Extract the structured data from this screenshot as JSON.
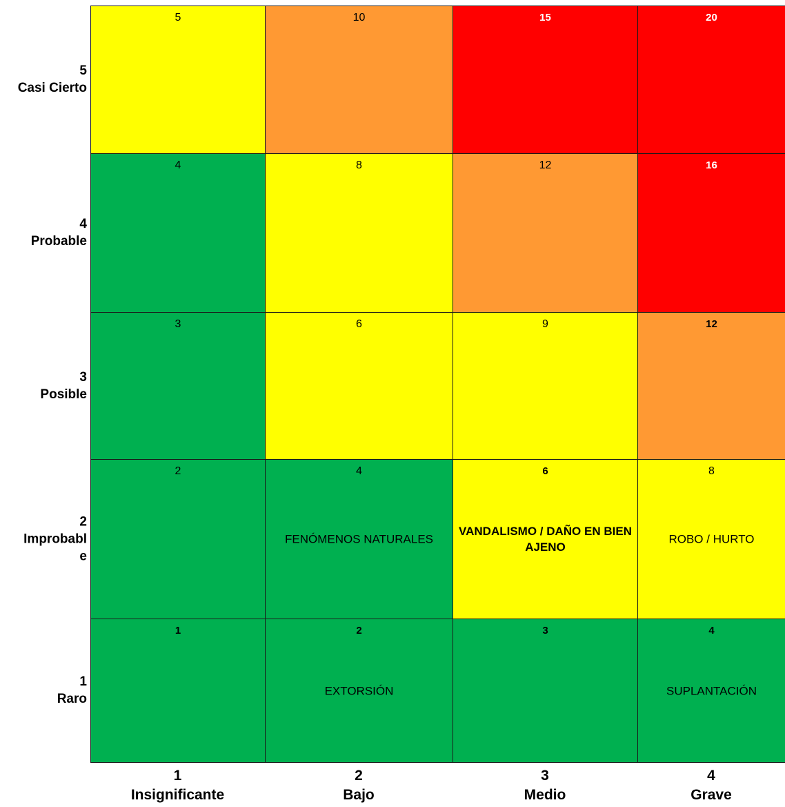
{
  "colors": {
    "green": "#00b050",
    "yellow": "#ffff00",
    "orange": "#ff9933",
    "red": "#ff0000"
  },
  "rows": [
    {
      "num": "5",
      "name": "Casi Cierto"
    },
    {
      "num": "4",
      "name": "Probable"
    },
    {
      "num": "3",
      "name": "Posible"
    },
    {
      "num": "2",
      "name": "Improbabl e"
    },
    {
      "num": "1",
      "name": "Raro"
    }
  ],
  "columns": [
    {
      "num": "1",
      "name": "Insignificante"
    },
    {
      "num": "2",
      "name": "Bajo"
    },
    {
      "num": "3",
      "name": "Medio"
    },
    {
      "num": "4",
      "name": "Grave"
    }
  ],
  "cells": [
    [
      {
        "score": "5",
        "level": "yellow",
        "risk": ""
      },
      {
        "score": "10",
        "level": "orange",
        "risk": ""
      },
      {
        "score": "15",
        "level": "red",
        "risk": ""
      },
      {
        "score": "20",
        "level": "red",
        "risk": ""
      }
    ],
    [
      {
        "score": "4",
        "level": "green",
        "risk": ""
      },
      {
        "score": "8",
        "level": "yellow",
        "risk": ""
      },
      {
        "score": "12",
        "level": "orange",
        "risk": ""
      },
      {
        "score": "16",
        "level": "red",
        "risk": ""
      }
    ],
    [
      {
        "score": "3",
        "level": "green",
        "risk": ""
      },
      {
        "score": "6",
        "level": "yellow",
        "risk": ""
      },
      {
        "score": "9",
        "level": "yellow",
        "risk": ""
      },
      {
        "score": "12",
        "level": "orange",
        "risk": ""
      }
    ],
    [
      {
        "score": "2",
        "level": "green",
        "risk": ""
      },
      {
        "score": "4",
        "level": "green",
        "risk": "FENÓMENOS NATURALES"
      },
      {
        "score": "6",
        "level": "yellow",
        "risk": "VANDALISMO / DAÑO EN BIEN AJENO"
      },
      {
        "score": "8",
        "level": "yellow",
        "risk": "ROBO / HURTO"
      }
    ],
    [
      {
        "score": "1",
        "level": "green",
        "risk": ""
      },
      {
        "score": "2",
        "level": "green",
        "risk": "EXTORSIÓN"
      },
      {
        "score": "3",
        "level": "green",
        "risk": ""
      },
      {
        "score": "4",
        "level": "green",
        "risk": "SUPLANTACIÓN"
      }
    ]
  ]
}
